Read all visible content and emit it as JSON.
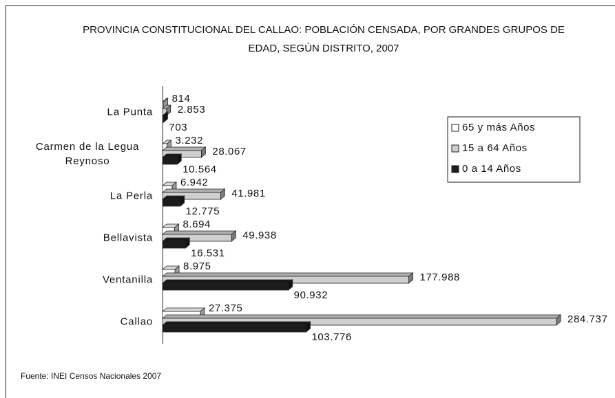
{
  "chart_data": {
    "type": "bar",
    "orientation": "horizontal",
    "title": "PROVINCIA CONSTITUCIONAL DEL CALLAO: POBLACIÓN CENSADA, POR GRANDES GRUPOS DE EDAD, SEGÚN DISTRITO, 2007",
    "categories": [
      "La Punta",
      "Carmen de la Legua Reynoso",
      "La Perla",
      "Bellavista",
      "Ventanilla",
      "Callao"
    ],
    "series": [
      {
        "name": "65 y más Años",
        "color": "#ffffff",
        "values": [
          814,
          3232,
          6942,
          8694,
          8975,
          27375
        ],
        "value_labels": [
          "814",
          "3.232",
          "6.942",
          "8.694",
          "8.975",
          "27.375"
        ]
      },
      {
        "name": "15 a 64 Años",
        "color": "#cfcfcf",
        "values": [
          2853,
          28067,
          41981,
          49938,
          177988,
          284737
        ],
        "value_labels": [
          "2.853",
          "28.067",
          "41.981",
          "49.938",
          "177.988",
          "284.737"
        ]
      },
      {
        "name": "0 a 14 Años",
        "color": "#1c1c1c",
        "values": [
          703,
          10564,
          12775,
          16531,
          90932,
          103776
        ],
        "value_labels": [
          "703",
          "10.564",
          "12.775",
          "16.531",
          "90.932",
          "103.776"
        ]
      }
    ],
    "legend": "right",
    "source": "Fuente: INEI Censos Nacionales 2007"
  }
}
